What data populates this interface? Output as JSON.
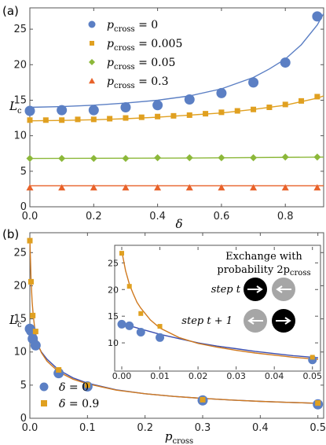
{
  "chart_data": [
    {
      "panel": "(a)",
      "type": "scatter",
      "xlabel": "δ",
      "ylabel_main": "L",
      "ylabel_sub": "c",
      "xlim": [
        0,
        0.92
      ],
      "ylim": [
        0,
        28
      ],
      "xticks": [
        0.0,
        0.2,
        0.4,
        0.6,
        0.8
      ],
      "xtick_labels": [
        "0.0",
        "0.2",
        "0.4",
        "0.6",
        "0.8"
      ],
      "yticks": [
        0,
        5,
        10,
        15,
        20,
        25
      ],
      "ytick_labels": [
        "0",
        "5",
        "10",
        "15",
        "20",
        "25"
      ],
      "legend_position": "top-left",
      "legend_prefix": "p",
      "legend_sub": "cross",
      "series": [
        {
          "name": " = 0",
          "color": "#5b7fc4",
          "marker": "circle",
          "x": [
            0,
            0.1,
            0.2,
            0.3,
            0.4,
            0.5,
            0.6,
            0.7,
            0.8,
            0.9
          ],
          "y": [
            13.5,
            13.6,
            13.6,
            14.0,
            14.3,
            15.1,
            16.0,
            17.5,
            20.3,
            26.8
          ],
          "curve_x": [
            0,
            0.1,
            0.2,
            0.3,
            0.4,
            0.5,
            0.6,
            0.7,
            0.75,
            0.8,
            0.85,
            0.9,
            0.92
          ],
          "curve_y": [
            14.0,
            14.1,
            14.3,
            14.6,
            15.0,
            15.6,
            16.6,
            18.2,
            19.4,
            20.8,
            22.8,
            25.6,
            27.2
          ]
        },
        {
          "name": " = 0.005",
          "color": "#e0a020",
          "marker": "square",
          "x": [
            0,
            0.05,
            0.1,
            0.15,
            0.2,
            0.25,
            0.3,
            0.35,
            0.4,
            0.45,
            0.5,
            0.55,
            0.6,
            0.65,
            0.7,
            0.75,
            0.8,
            0.85,
            0.9
          ],
          "y": [
            12.2,
            12.2,
            12.2,
            12.3,
            12.3,
            12.4,
            12.5,
            12.6,
            12.7,
            12.8,
            12.9,
            13.1,
            13.3,
            13.5,
            13.7,
            14.0,
            14.4,
            14.9,
            15.5
          ],
          "curve_x": [
            0,
            0.1,
            0.2,
            0.3,
            0.4,
            0.5,
            0.6,
            0.7,
            0.8,
            0.9,
            0.92
          ],
          "curve_y": [
            12.1,
            12.15,
            12.25,
            12.4,
            12.6,
            12.9,
            13.2,
            13.7,
            14.3,
            15.3,
            15.6
          ]
        },
        {
          "name": " = 0.05",
          "color": "#8cb83a",
          "marker": "diamond",
          "x": [
            0,
            0.1,
            0.2,
            0.3,
            0.4,
            0.5,
            0.6,
            0.7,
            0.8,
            0.9
          ],
          "y": [
            6.8,
            6.8,
            6.8,
            6.8,
            6.9,
            6.9,
            6.9,
            6.9,
            7.0,
            7.0
          ],
          "curve_x": [
            0,
            0.46,
            0.92
          ],
          "curve_y": [
            6.8,
            6.85,
            7.0
          ]
        },
        {
          "name": " = 0.3",
          "color": "#e8622a",
          "marker": "triangle",
          "x": [
            0,
            0.1,
            0.2,
            0.3,
            0.4,
            0.5,
            0.6,
            0.7,
            0.8,
            0.9
          ],
          "y": [
            2.7,
            2.7,
            2.7,
            2.7,
            2.7,
            2.7,
            2.7,
            2.7,
            2.7,
            2.7
          ],
          "curve_x": [
            0,
            0.92
          ],
          "curve_y": [
            2.95,
            2.95
          ]
        }
      ]
    },
    {
      "panel": "(b)",
      "type": "scatter",
      "xlabel_main": "p",
      "xlabel_sub": "cross",
      "ylabel_main": "L",
      "ylabel_sub": "c",
      "xlim": [
        0,
        0.51
      ],
      "ylim": [
        0,
        28
      ],
      "xticks": [
        0.0,
        0.1,
        0.2,
        0.3,
        0.4,
        0.5
      ],
      "xtick_labels": [
        "0.0",
        "0.1",
        "0.2",
        "0.3",
        "0.4",
        "0.5"
      ],
      "yticks": [
        0,
        5,
        10,
        15,
        20,
        25
      ],
      "ytick_labels": [
        "0",
        "5",
        "10",
        "15",
        "20",
        "25"
      ],
      "legend_position": "bottom-left",
      "legend_prefix": "δ",
      "series": [
        {
          "name": " = 0",
          "color": "#5b7fc4",
          "marker": "circle",
          "x": [
            0,
            0.002,
            0.005,
            0.01,
            0.05,
            0.1,
            0.3,
            0.5
          ],
          "y": [
            13.5,
            13.2,
            12.0,
            11.0,
            6.8,
            4.8,
            2.7,
            2.1
          ]
        },
        {
          "name": " = 0.9",
          "color": "#e0a020",
          "marker": "square",
          "x": [
            0,
            0.002,
            0.005,
            0.01,
            0.05,
            0.1,
            0.3,
            0.5
          ],
          "y": [
            26.8,
            20.6,
            15.5,
            13.1,
            7.3,
            5.0,
            2.8,
            2.3
          ]
        }
      ],
      "curves": [
        {
          "color": "#3c4fb0",
          "x": [
            0,
            0.002,
            0.005,
            0.01,
            0.02,
            0.03,
            0.05,
            0.075,
            0.1,
            0.15,
            0.2,
            0.25,
            0.3,
            0.35,
            0.4,
            0.45,
            0.5
          ],
          "y": [
            14.0,
            13.3,
            12.6,
            11.6,
            10.0,
            8.9,
            7.3,
            6.1,
            5.3,
            4.3,
            3.7,
            3.3,
            3.0,
            2.75,
            2.55,
            2.4,
            2.25
          ]
        },
        {
          "color": "#d07a20",
          "x": [
            0,
            0.002,
            0.004,
            0.006,
            0.008,
            0.01,
            0.015,
            0.02,
            0.03,
            0.05,
            0.075,
            0.1,
            0.15,
            0.2,
            0.25,
            0.3,
            0.35,
            0.4,
            0.45,
            0.5
          ],
          "y": [
            27.2,
            21.0,
            17.6,
            15.4,
            13.9,
            12.8,
            11.0,
            9.9,
            8.6,
            7.0,
            5.9,
            5.2,
            4.25,
            3.7,
            3.3,
            3.0,
            2.75,
            2.55,
            2.4,
            2.25
          ]
        }
      ],
      "inset": {
        "xlim": [
          0,
          0.0515
        ],
        "ylim": [
          5,
          28
        ],
        "xticks": [
          0,
          0.01,
          0.02,
          0.03,
          0.04,
          0.05
        ],
        "xtick_labels": [
          "0.00",
          "0.01",
          "0.02",
          "0.03",
          "0.04",
          "0.05"
        ],
        "yticks": [
          10,
          15,
          20,
          25
        ],
        "ytick_labels": [
          "10",
          "15",
          "20",
          "25"
        ],
        "curve_x": [
          0,
          0.001,
          0.002,
          0.003,
          0.004,
          0.005,
          0.0075,
          0.01,
          0.015,
          0.02,
          0.025,
          0.03,
          0.035,
          0.04,
          0.045,
          0.05,
          0.0515
        ],
        "curve_blue_y": [
          14.0,
          13.6,
          13.3,
          13.0,
          12.8,
          12.6,
          12.1,
          11.6,
          10.8,
          10.0,
          9.4,
          8.9,
          8.4,
          8.0,
          7.6,
          7.3,
          7.2
        ],
        "curve_orange_y": [
          27.2,
          23.5,
          21.0,
          19.2,
          17.6,
          16.5,
          14.3,
          12.8,
          11.0,
          9.9,
          9.2,
          8.6,
          8.1,
          7.7,
          7.3,
          7.0,
          6.9
        ],
        "caption_line1": "Exchange with",
        "caption_line2_prefix": "probability 2p",
        "caption_line2_sub": "cross",
        "step1_label": "step t",
        "step2_label": "step t + 1"
      }
    }
  ]
}
